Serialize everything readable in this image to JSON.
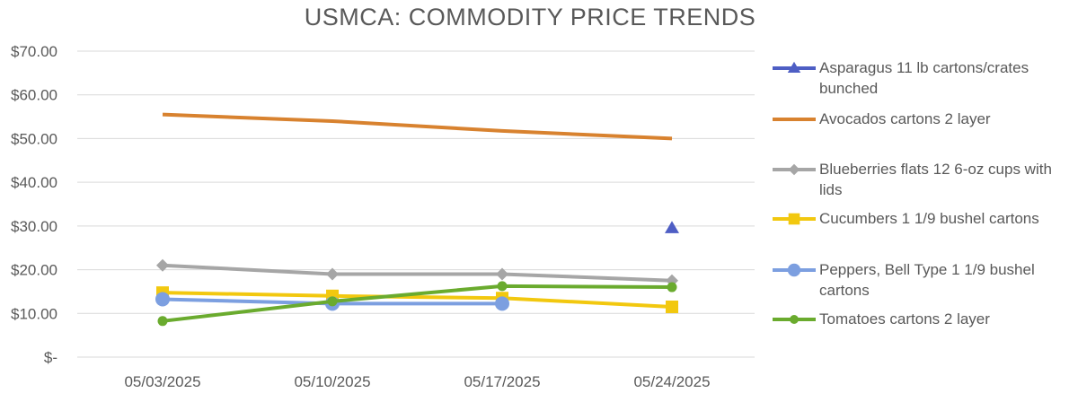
{
  "chart_data": {
    "type": "line",
    "title": "USMCA: COMMODITY PRICE TRENDS",
    "categories": [
      "05/03/2025",
      "05/10/2025",
      "05/17/2025",
      "05/24/2025"
    ],
    "y_tick_labels": [
      "$-",
      "$10.00",
      "$20.00",
      "$30.00",
      "$40.00",
      "$50.00",
      "$60.00",
      "$70.00"
    ],
    "ylim": [
      0,
      70
    ],
    "y_step": 10,
    "grid": true,
    "legend_position": "right",
    "series": [
      {
        "name": "Asparagus 11 lb cartons/crates bunched",
        "color": "#4e5ec4",
        "marker": "triangle",
        "values": [
          null,
          null,
          null,
          29.5
        ]
      },
      {
        "name": "Avocados cartons 2 layer",
        "color": "#d8822f",
        "marker": "none",
        "values": [
          55.5,
          54.0,
          51.75,
          50.0
        ]
      },
      {
        "name": "Blueberries flats 12 6-oz cups with lids",
        "color": "#a6a6a6",
        "marker": "diamond",
        "values": [
          21.0,
          19.0,
          19.0,
          17.5
        ]
      },
      {
        "name": "Cucumbers 1 1/9 bushel cartons",
        "color": "#f2c80f",
        "marker": "square",
        "values": [
          14.75,
          14.0,
          13.5,
          11.5
        ]
      },
      {
        "name": "Peppers, Bell Type 1 1/9 bushel cartons",
        "color": "#7c9fe0",
        "marker": "circle-large",
        "values": [
          13.25,
          12.25,
          12.25,
          null
        ]
      },
      {
        "name": "Tomatoes cartons 2 layer",
        "color": "#6aab2e",
        "marker": "circle",
        "values": [
          8.25,
          12.75,
          16.25,
          16.0
        ]
      }
    ]
  }
}
